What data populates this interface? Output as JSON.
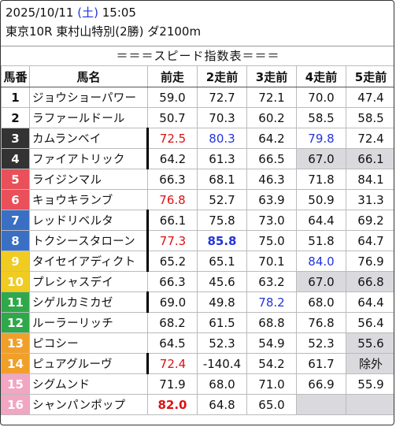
{
  "header": {
    "date": "2025/10/11",
    "weekday": "(土)",
    "time": "15:05",
    "race": "東京10R 東村山特別(2勝) ダ2100m"
  },
  "subtitle": "＝＝＝スピード指数表＝＝＝",
  "columns": [
    "馬番",
    "馬名",
    "前走",
    "2走前",
    "3走前",
    "4走前",
    "5走前"
  ],
  "rows": [
    {
      "num": "1",
      "name": "ジョウショーパワー",
      "v": [
        "59.0",
        "72.7",
        "72.1",
        "70.0",
        "47.4"
      ]
    },
    {
      "num": "2",
      "name": "ラファールドール",
      "v": [
        "50.7",
        "70.3",
        "60.2",
        "58.5",
        "58.5"
      ]
    },
    {
      "num": "3",
      "name": "カムランベイ",
      "v": [
        "72.5",
        "80.3",
        "64.2",
        "79.8",
        "72.4"
      ]
    },
    {
      "num": "4",
      "name": "ファイアトリック",
      "v": [
        "64.2",
        "61.3",
        "66.5",
        "67.0",
        "66.1"
      ]
    },
    {
      "num": "5",
      "name": "ライジンマル",
      "v": [
        "66.3",
        "68.1",
        "46.3",
        "71.8",
        "84.1"
      ]
    },
    {
      "num": "6",
      "name": "キョウキランブ",
      "v": [
        "76.8",
        "52.7",
        "63.9",
        "50.9",
        "31.3"
      ]
    },
    {
      "num": "7",
      "name": "レッドリベルタ",
      "v": [
        "66.1",
        "75.8",
        "73.0",
        "64.4",
        "69.2"
      ]
    },
    {
      "num": "8",
      "name": "トクシースタローン",
      "v": [
        "77.3",
        "85.8",
        "75.0",
        "51.8",
        "64.7"
      ]
    },
    {
      "num": "9",
      "name": "タイセイアディクト",
      "v": [
        "65.2",
        "65.1",
        "70.1",
        "84.0",
        "76.9"
      ]
    },
    {
      "num": "10",
      "name": "プレシャスデイ",
      "v": [
        "66.3",
        "45.6",
        "63.2",
        "67.0",
        "66.8"
      ]
    },
    {
      "num": "11",
      "name": "シゲルカミカゼ",
      "v": [
        "69.0",
        "49.8",
        "78.2",
        "68.0",
        "64.4"
      ]
    },
    {
      "num": "12",
      "name": "ルーラーリッチ",
      "v": [
        "68.2",
        "61.5",
        "68.8",
        "76.8",
        "56.4"
      ]
    },
    {
      "num": "13",
      "name": "ピコシー",
      "v": [
        "64.5",
        "52.3",
        "54.9",
        "52.3",
        "55.6"
      ]
    },
    {
      "num": "14",
      "name": "ピュアグルーヴ",
      "v": [
        "72.4",
        "-140.4",
        "54.2",
        "61.7",
        "除外"
      ]
    },
    {
      "num": "15",
      "name": "シグムンド",
      "v": [
        "71.9",
        "68.0",
        "71.0",
        "66.9",
        "55.9"
      ]
    },
    {
      "num": "16",
      "name": "シャンパンポップ",
      "v": [
        "82.0",
        "64.8",
        "65.0",
        "",
        ""
      ]
    }
  ],
  "colors": {
    "red": "#dd1111",
    "blue": "#2233dd",
    "gray_cell": "#d9d9de"
  }
}
